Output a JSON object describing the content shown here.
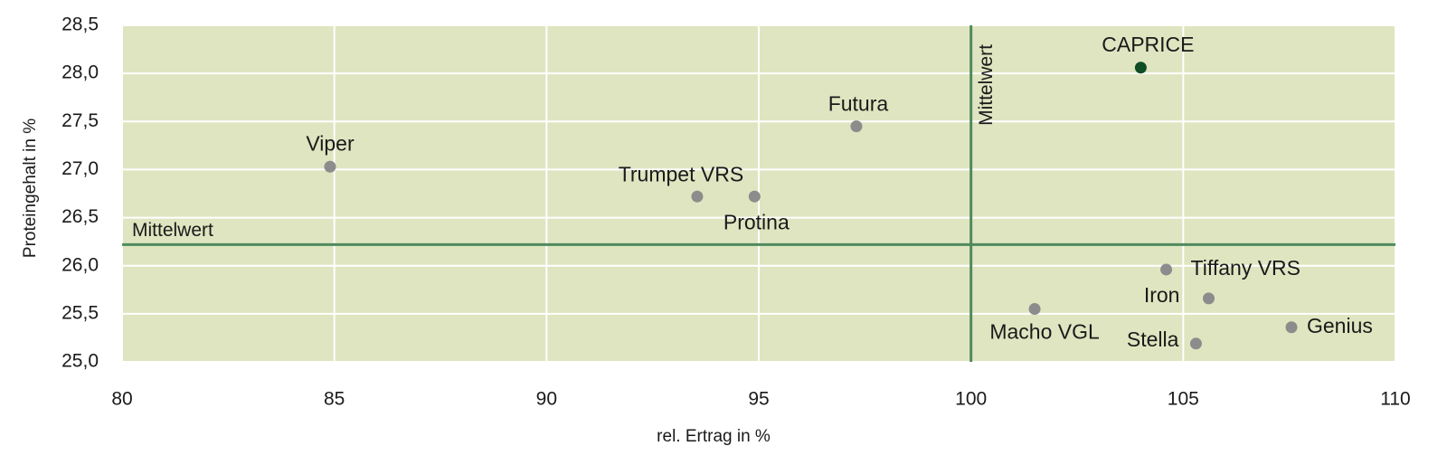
{
  "chart_data": {
    "type": "scatter",
    "xlabel": "rel. Ertrag in %",
    "ylabel": "Proteingehalt in %",
    "xlim": [
      80,
      110
    ],
    "xticks": [
      80,
      85,
      90,
      95,
      100,
      105,
      110
    ],
    "ylim": [
      25,
      28.5
    ],
    "yticks": [
      {
        "value": 25,
        "label": "25,0"
      },
      {
        "value": 25.5,
        "label": "25,5"
      },
      {
        "value": 26,
        "label": "26,0"
      },
      {
        "value": 26.5,
        "label": "26,5"
      },
      {
        "value": 27,
        "label": "27,0"
      },
      {
        "value": 27.5,
        "label": "27,5"
      },
      {
        "value": 28,
        "label": "28,0"
      },
      {
        "value": 28.5,
        "label": "28,5"
      }
    ],
    "grid": true,
    "mean_label": "Mittelwert",
    "mean_x": 100,
    "mean_y": 26.22,
    "mean_color": "#4f8a5f",
    "points": [
      {
        "name": "Viper",
        "x": 84.9,
        "y": 27.03,
        "color": "#8c8c8c"
      },
      {
        "name": "Trumpet VRS",
        "x": 93.55,
        "y": 26.72,
        "color": "#8c8c8c"
      },
      {
        "name": "Protina",
        "x": 94.9,
        "y": 26.72,
        "color": "#8c8c8c"
      },
      {
        "name": "Futura",
        "x": 97.3,
        "y": 27.45,
        "color": "#8c8c8c"
      },
      {
        "name": "CAPRICE",
        "x": 104.0,
        "y": 28.06,
        "color": "#0e4d26"
      },
      {
        "name": "Tiffany VRS",
        "x": 104.6,
        "y": 25.96,
        "color": "#8c8c8c"
      },
      {
        "name": "Iron",
        "x": 105.6,
        "y": 25.66,
        "color": "#8c8c8c"
      },
      {
        "name": "Macho VGL",
        "x": 101.5,
        "y": 25.55,
        "color": "#8c8c8c"
      },
      {
        "name": "Stella",
        "x": 105.3,
        "y": 25.19,
        "color": "#8c8c8c"
      },
      {
        "name": "Genius",
        "x": 107.55,
        "y": 25.36,
        "color": "#8c8c8c"
      }
    ]
  }
}
